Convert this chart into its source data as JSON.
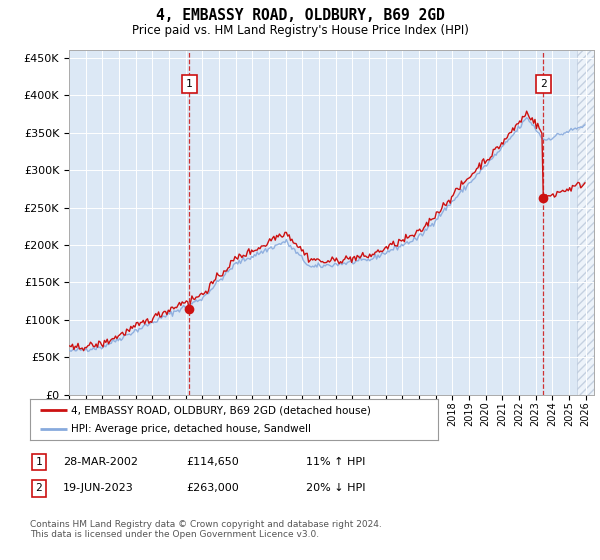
{
  "title": "4, EMBASSY ROAD, OLDBURY, B69 2GD",
  "subtitle": "Price paid vs. HM Land Registry's House Price Index (HPI)",
  "plot_bg": "#dce8f5",
  "transaction1": {
    "date": "28-MAR-2002",
    "price": 114650,
    "pct": "11%",
    "dir": "↑",
    "label": "1"
  },
  "transaction2": {
    "date": "19-JUN-2023",
    "price": 263000,
    "pct": "20%",
    "dir": "↓",
    "label": "2"
  },
  "legend_property": "4, EMBASSY ROAD, OLDBURY, B69 2GD (detached house)",
  "legend_hpi": "HPI: Average price, detached house, Sandwell",
  "footer": "Contains HM Land Registry data © Crown copyright and database right 2024.\nThis data is licensed under the Open Government Licence v3.0.",
  "ylim": [
    0,
    460000
  ],
  "yticks": [
    0,
    50000,
    100000,
    150000,
    200000,
    250000,
    300000,
    350000,
    400000,
    450000
  ],
  "ytick_labels": [
    "£0",
    "£50K",
    "£100K",
    "£150K",
    "£200K",
    "£250K",
    "£300K",
    "£350K",
    "£400K",
    "£450K"
  ],
  "xlim_start": 1995,
  "xlim_end": 2026.5,
  "t1_year": 2002.22,
  "t1_price": 114650,
  "t2_year": 2023.46,
  "t2_price": 263000,
  "line_color_property": "#cc1111",
  "line_color_hpi": "#88aadd",
  "hatch_start": 2025.5
}
